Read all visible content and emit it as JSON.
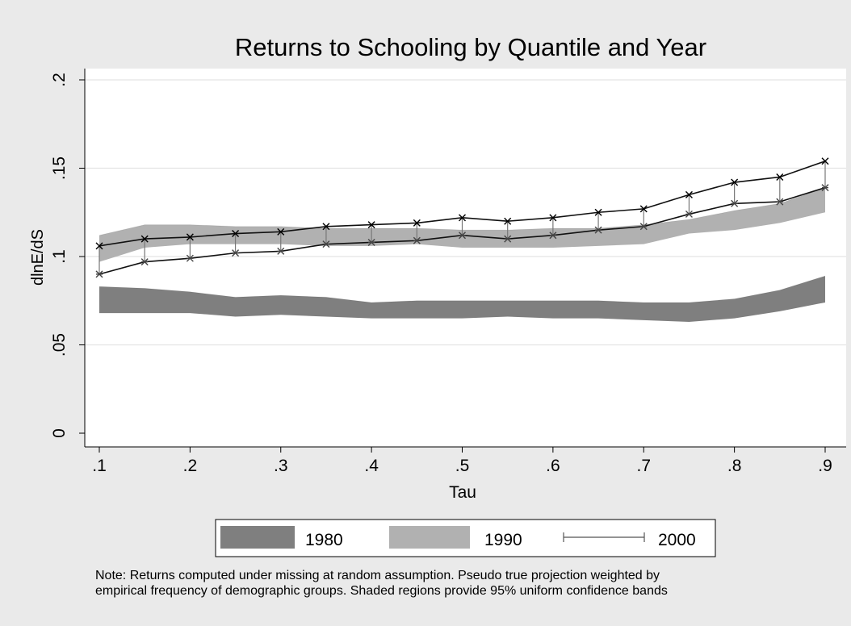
{
  "chart_data": {
    "type": "area",
    "title": "Returns to Schooling by Quantile and Year",
    "xlabel": "Tau",
    "ylabel": "dlnE/dS",
    "xlim": [
      0.1,
      0.9
    ],
    "ylim": [
      0,
      0.2
    ],
    "x_ticks": [
      0.1,
      0.2,
      0.3,
      0.4,
      0.5,
      0.6,
      0.7,
      0.8,
      0.9
    ],
    "x_tick_labels": [
      ".1",
      ".2",
      ".3",
      ".4",
      ".5",
      ".6",
      ".7",
      ".8",
      ".9"
    ],
    "y_ticks": [
      0,
      0.05,
      0.1,
      0.15,
      0.2
    ],
    "y_tick_labels": [
      "0",
      ".05",
      ".1",
      ".15",
      ".2"
    ],
    "grid": true,
    "legend_position": "bottom",
    "x": [
      0.1,
      0.15,
      0.2,
      0.25,
      0.3,
      0.35,
      0.4,
      0.45,
      0.5,
      0.55,
      0.6,
      0.65,
      0.7,
      0.75,
      0.8,
      0.85,
      0.9
    ],
    "series": [
      {
        "name": "1980",
        "kind": "band",
        "color": "#7f7f7f",
        "upper": [
          0.083,
          0.082,
          0.08,
          0.077,
          0.078,
          0.077,
          0.074,
          0.075,
          0.075,
          0.075,
          0.075,
          0.075,
          0.074,
          0.074,
          0.076,
          0.081,
          0.089
        ],
        "lower": [
          0.068,
          0.068,
          0.068,
          0.066,
          0.067,
          0.066,
          0.065,
          0.065,
          0.065,
          0.066,
          0.065,
          0.065,
          0.064,
          0.063,
          0.065,
          0.069,
          0.074
        ]
      },
      {
        "name": "1990",
        "kind": "band",
        "color": "#b1b1b1",
        "upper": [
          0.112,
          0.118,
          0.118,
          0.117,
          0.117,
          0.116,
          0.116,
          0.116,
          0.115,
          0.115,
          0.116,
          0.116,
          0.118,
          0.121,
          0.126,
          0.13,
          0.139
        ],
        "lower": [
          0.097,
          0.105,
          0.107,
          0.107,
          0.107,
          0.106,
          0.106,
          0.107,
          0.105,
          0.105,
          0.105,
          0.106,
          0.107,
          0.113,
          0.115,
          0.119,
          0.125
        ]
      },
      {
        "name": "2000",
        "kind": "interval",
        "color": "#000000",
        "upper": [
          0.106,
          0.11,
          0.111,
          0.113,
          0.114,
          0.117,
          0.118,
          0.119,
          0.122,
          0.12,
          0.122,
          0.125,
          0.127,
          0.135,
          0.142,
          0.145,
          0.154
        ],
        "lower": [
          0.09,
          0.097,
          0.099,
          0.102,
          0.103,
          0.107,
          0.108,
          0.109,
          0.112,
          0.11,
          0.112,
          0.115,
          0.117,
          0.124,
          0.13,
          0.131,
          0.139
        ]
      }
    ],
    "note": [
      "Note: Returns computed under missing at random assumption. Pseudo true projection weighted by",
      "empirical frequency of demographic groups. Shaded regions provide 95% uniform confidence bands"
    ]
  }
}
